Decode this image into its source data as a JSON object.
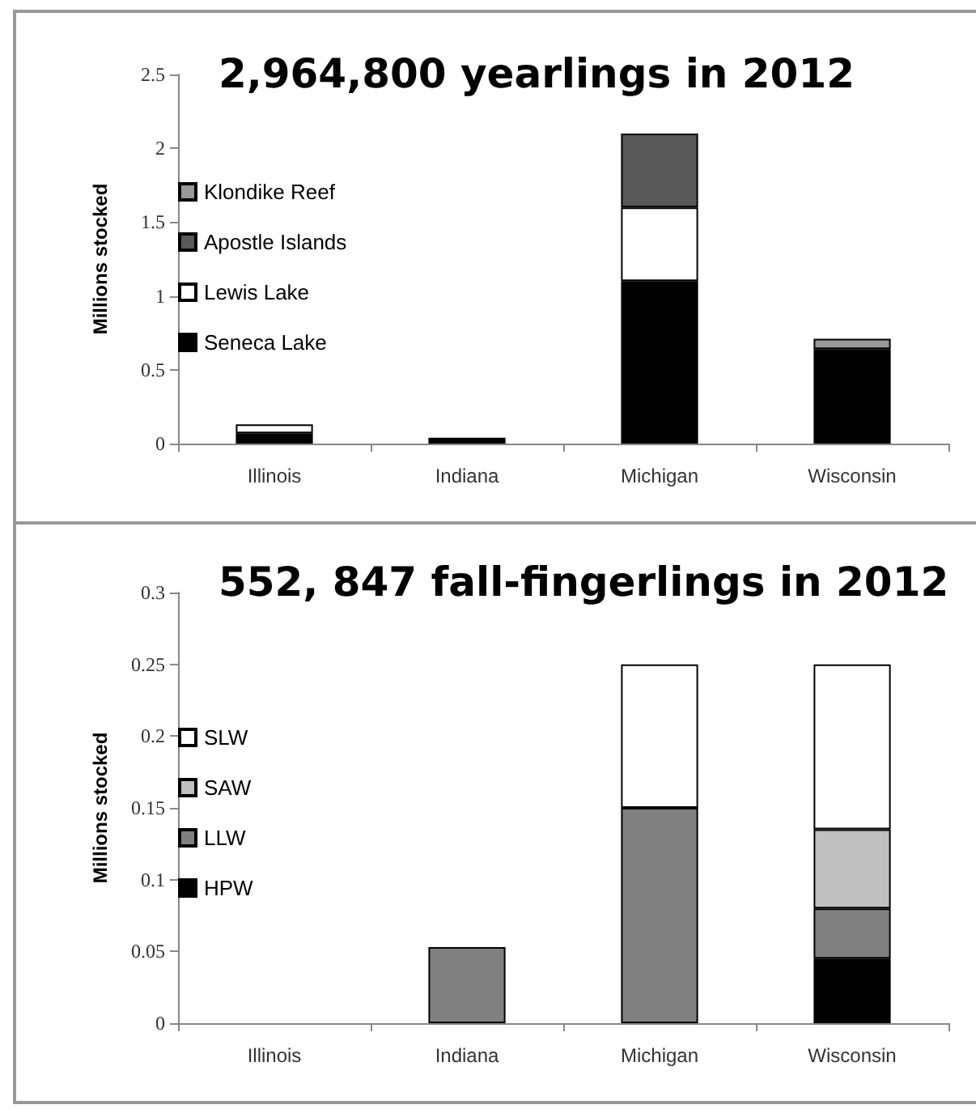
{
  "chart_data": [
    {
      "type": "bar",
      "title": "2,964,800 yearlings in 2012",
      "ylabel": "Millions stocked",
      "categories": [
        "Illinois",
        "Indiana",
        "Michigan",
        "Wisconsin"
      ],
      "stacked": true,
      "ylim": [
        0,
        2.5
      ],
      "yticks": [
        0,
        0.5,
        1,
        1.5,
        2,
        2.5
      ],
      "grid": false,
      "legend": "left",
      "series": [
        {
          "name": "Seneca Lake",
          "color": "#000000",
          "values": [
            0.07,
            0.04,
            1.1,
            0.64
          ]
        },
        {
          "name": "Lewis Lake",
          "color": "#ffffff",
          "values": [
            0.06,
            null,
            0.5,
            null
          ]
        },
        {
          "name": "Apostle Islands",
          "color": "#595959",
          "values": [
            null,
            null,
            0.5,
            null
          ]
        },
        {
          "name": "Klondike Reef",
          "color": "#999999",
          "values": [
            null,
            null,
            null,
            0.07
          ]
        }
      ]
    },
    {
      "type": "bar",
      "title": "552, 847 fall-fingerlings in 2012",
      "ylabel": "Millions stocked",
      "categories": [
        "Illinois",
        "Indiana",
        "Michigan",
        "Wisconsin"
      ],
      "stacked": true,
      "ylim": [
        0,
        0.3
      ],
      "yticks": [
        0,
        0.05,
        0.1,
        0.15,
        0.2,
        0.25,
        0.3
      ],
      "grid": false,
      "legend": "left",
      "series": [
        {
          "name": "HPW",
          "color": "#000000",
          "values": [
            null,
            null,
            null,
            0.045
          ]
        },
        {
          "name": "LLW",
          "color": "#808080",
          "values": [
            null,
            0.053,
            0.15,
            0.035
          ]
        },
        {
          "name": "SAW",
          "color": "#c0c0c0",
          "values": [
            null,
            null,
            null,
            0.055
          ]
        },
        {
          "name": "SLW",
          "color": "#ffffff",
          "values": [
            null,
            null,
            0.1,
            0.115
          ]
        }
      ]
    }
  ]
}
